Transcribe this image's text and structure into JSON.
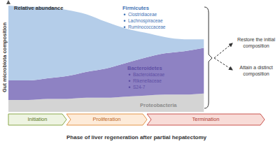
{
  "chart_data": {
    "type": "area",
    "stacked": true,
    "y_label": "Gut microbiota composition",
    "annotation": "Relative abundance",
    "x_label": "Phase of liver regeneration after partial hepatectomy",
    "phases": [
      "Initiation",
      "Proliferation",
      "Termination"
    ],
    "outcomes": [
      "Restore the initial composition",
      "Attain a distinct composition"
    ],
    "x": [
      0,
      1,
      2,
      3,
      4,
      5,
      6,
      7,
      8,
      9,
      10
    ],
    "xlim": [
      0,
      13
    ],
    "ylim": [
      0,
      100
    ],
    "xticks": [],
    "yticks": [],
    "tick_labels": false,
    "grid": false,
    "series": [
      {
        "name": "Proteobacteria",
        "families": [],
        "color": "#d4d4d4",
        "values": [
          11,
          11,
          12,
          12,
          13,
          13,
          14,
          15,
          16,
          16,
          17
        ]
      },
      {
        "name": "Bacteroidetes",
        "families": [
          "Bacteroidaceae",
          "Rikenellaceae",
          "S24-7"
        ],
        "color": "#8e82c3",
        "values": [
          18,
          18,
          19,
          21,
          24,
          27,
          31,
          35,
          38,
          40,
          42
        ]
      },
      {
        "name": "Firmicutes",
        "families": [
          "Clostridiaceae",
          "Lachnospiraceae",
          "Ruminococcaceae"
        ],
        "color": "#b4cde9",
        "values": [
          69,
          68,
          66,
          61,
          53,
          43,
          32,
          23,
          15,
          11,
          8
        ]
      }
    ]
  }
}
